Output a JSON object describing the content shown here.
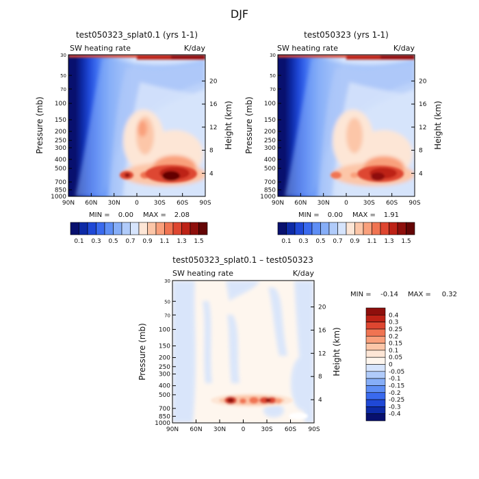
{
  "figure": {
    "title": "DJF"
  },
  "chart_data": [
    {
      "type": "heatmap",
      "title": "test050323_splat0.1 (yrs 1-1)",
      "subtitle_left": "SW heating rate",
      "subtitle_right": "K/day",
      "ylabel": "Pressure (mb)",
      "y2label": "Height (km)",
      "xticks": [
        "90N",
        "60N",
        "30N",
        "0",
        "30S",
        "60S",
        "90S"
      ],
      "yticks": [
        "30",
        "50",
        "70",
        "100",
        "150",
        "200",
        "250",
        "300",
        "400",
        "500",
        "700",
        "850",
        "1000"
      ],
      "y2ticks": [
        "20",
        "16",
        "12",
        "8",
        "4"
      ],
      "ylim": [
        1000,
        30
      ],
      "stats": {
        "min_label": "MIN =",
        "min": "0.00",
        "max_label": "MAX =",
        "max": "2.08"
      },
      "colorbar_labels": [
        "0.1",
        "0.3",
        "0.5",
        "0.7",
        "0.9",
        "1.1",
        "1.3",
        "1.5"
      ],
      "colorbar_levels": [
        0.1,
        0.2,
        0.3,
        0.4,
        0.5,
        0.6,
        0.7,
        0.8,
        0.9,
        1.0,
        1.1,
        1.2,
        1.3,
        1.4,
        1.5
      ],
      "colorbar_colors": [
        "#08106e",
        "#0d2aa6",
        "#1f48d6",
        "#3a6aee",
        "#5e8ef5",
        "#86aef8",
        "#b0cbfa",
        "#d6e4fc",
        "#fde6d6",
        "#fcc6a8",
        "#f9a07c",
        "#f07452",
        "#de4630",
        "#bd2216",
        "#8e0f0c",
        "#640505"
      ]
    },
    {
      "type": "heatmap",
      "title": "test050323 (yrs 1-1)",
      "subtitle_left": "SW heating rate",
      "subtitle_right": "K/day",
      "ylabel": "Pressure (mb)",
      "y2label": "Height (km)",
      "xticks": [
        "90N",
        "60N",
        "30N",
        "0",
        "30S",
        "60S",
        "90S"
      ],
      "yticks": [
        "30",
        "50",
        "70",
        "100",
        "150",
        "200",
        "250",
        "300",
        "400",
        "500",
        "700",
        "850",
        "1000"
      ],
      "y2ticks": [
        "20",
        "16",
        "12",
        "8",
        "4"
      ],
      "ylim": [
        1000,
        30
      ],
      "stats": {
        "min_label": "MIN =",
        "min": "0.00",
        "max_label": "MAX =",
        "max": "1.91"
      },
      "colorbar_labels": [
        "0.1",
        "0.3",
        "0.5",
        "0.7",
        "0.9",
        "1.1",
        "1.3",
        "1.5"
      ],
      "colorbar_levels": [
        0.1,
        0.2,
        0.3,
        0.4,
        0.5,
        0.6,
        0.7,
        0.8,
        0.9,
        1.0,
        1.1,
        1.2,
        1.3,
        1.4,
        1.5
      ],
      "colorbar_colors": [
        "#08106e",
        "#0d2aa6",
        "#1f48d6",
        "#3a6aee",
        "#5e8ef5",
        "#86aef8",
        "#b0cbfa",
        "#d6e4fc",
        "#fde6d6",
        "#fcc6a8",
        "#f9a07c",
        "#f07452",
        "#de4630",
        "#bd2216",
        "#8e0f0c",
        "#640505"
      ]
    },
    {
      "type": "heatmap",
      "title": "test050323_splat0.1 – test050323",
      "subtitle_left": "SW heating rate",
      "subtitle_right": "K/day",
      "ylabel": "Pressure (mb)",
      "y2label": "Height (km)",
      "xticks": [
        "90N",
        "60N",
        "30N",
        "0",
        "30S",
        "60S",
        "90S"
      ],
      "yticks": [
        "30",
        "50",
        "70",
        "100",
        "150",
        "200",
        "250",
        "300",
        "400",
        "500",
        "700",
        "850",
        "1000"
      ],
      "y2ticks": [
        "20",
        "16",
        "12",
        "8",
        "4"
      ],
      "ylim": [
        1000,
        30
      ],
      "stats": {
        "min_label": "MIN =",
        "min": "-0.14",
        "max_label": "MAX =",
        "max": "0.32"
      },
      "colorbar_labels": [
        "0.4",
        "0.3",
        "0.25",
        "0.2",
        "0.15",
        "0.1",
        "0.05",
        "0",
        "-0.05",
        "-0.1",
        "-0.15",
        "-0.2",
        "-0.25",
        "-0.3",
        "-0.4"
      ],
      "colorbar_colors": [
        "#8e0f0c",
        "#bd2216",
        "#de4630",
        "#f07452",
        "#f9a07c",
        "#fcc6a8",
        "#fde6d6",
        "#fef6ee",
        "#d6e4fc",
        "#b0cbfa",
        "#86aef8",
        "#5e8ef5",
        "#3a6aee",
        "#1f48d6",
        "#0d2aa6",
        "#08106e"
      ]
    }
  ]
}
